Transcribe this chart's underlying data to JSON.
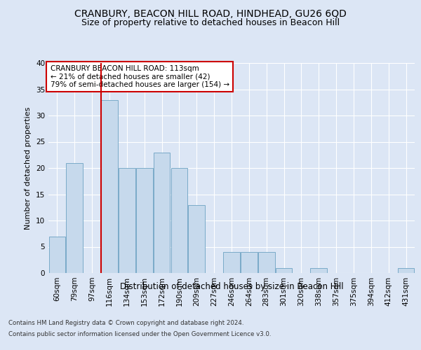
{
  "title1": "CRANBURY, BEACON HILL ROAD, HINDHEAD, GU26 6QD",
  "title2": "Size of property relative to detached houses in Beacon Hill",
  "xlabel": "Distribution of detached houses by size in Beacon Hill",
  "ylabel": "Number of detached properties",
  "footer1": "Contains HM Land Registry data © Crown copyright and database right 2024.",
  "footer2": "Contains public sector information licensed under the Open Government Licence v3.0.",
  "annotation_title": "CRANBURY BEACON HILL ROAD: 113sqm",
  "annotation_line2": "← 21% of detached houses are smaller (42)",
  "annotation_line3": "79% of semi-detached houses are larger (154) →",
  "categories": [
    "60sqm",
    "79sqm",
    "97sqm",
    "116sqm",
    "134sqm",
    "153sqm",
    "172sqm",
    "190sqm",
    "209sqm",
    "227sqm",
    "246sqm",
    "264sqm",
    "283sqm",
    "301sqm",
    "320sqm",
    "338sqm",
    "357sqm",
    "375sqm",
    "394sqm",
    "412sqm",
    "431sqm"
  ],
  "values": [
    7,
    21,
    0,
    33,
    20,
    20,
    23,
    20,
    13,
    0,
    4,
    4,
    4,
    1,
    0,
    1,
    0,
    0,
    0,
    0,
    1
  ],
  "bar_color": "#c6d9ec",
  "bar_edge_color": "#7aaac8",
  "vline_color": "#cc0000",
  "annotation_box_edge": "#cc0000",
  "ylim": [
    0,
    40
  ],
  "yticks": [
    0,
    5,
    10,
    15,
    20,
    25,
    30,
    35,
    40
  ],
  "bg_color": "#dce6f5",
  "fig_color": "#dce6f5",
  "grid_color": "#ffffff",
  "title1_fontsize": 10,
  "title2_fontsize": 9,
  "xlabel_fontsize": 8.5,
  "ylabel_fontsize": 8,
  "tick_fontsize": 7.5,
  "footer_fontsize": 6.2,
  "ann_fontsize": 7.5
}
